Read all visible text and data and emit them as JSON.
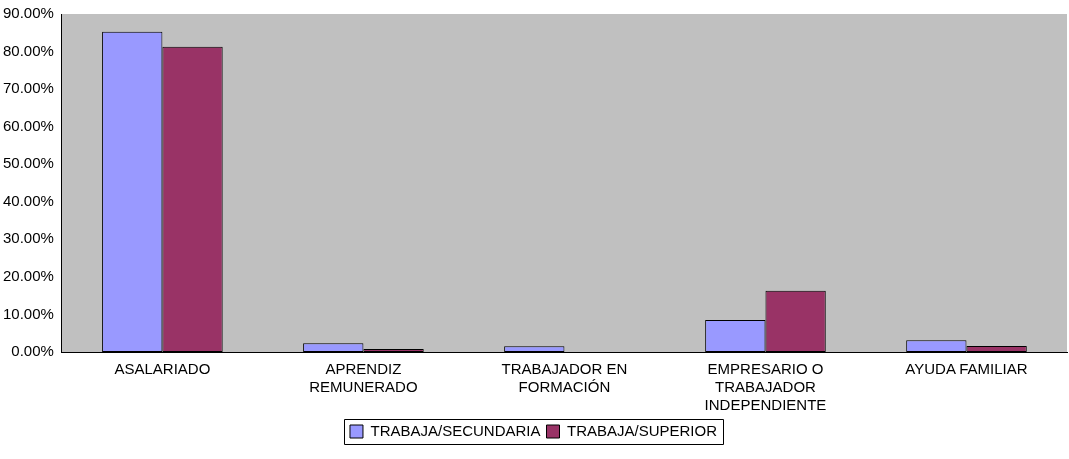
{
  "chart_data": {
    "type": "bar",
    "categories": [
      "ASALARIADO",
      "APRENDIZ REMUNERADO",
      "TRABAJADOR EN FORMACIÓN",
      "EMPRESARIO O TRABAJADOR INDEPENDIENTE",
      "AYUDA FAMILIAR"
    ],
    "series": [
      {
        "name": "TRABAJA/SECUNDARIA",
        "color": "#9999ff",
        "values": [
          85.3,
          2.3,
          1.5,
          8.5,
          3.1
        ]
      },
      {
        "name": "TRABAJA/SUPERIOR",
        "color": "#993366",
        "values": [
          81.3,
          0.8,
          0,
          16.3,
          1.6
        ]
      }
    ],
    "ylim": [
      0,
      90
    ],
    "yticks": [
      {
        "value": 0,
        "label": "0.00%"
      },
      {
        "value": 10,
        "label": "10.00%"
      },
      {
        "value": 20,
        "label": "20.00%"
      },
      {
        "value": 30,
        "label": "30.00%"
      },
      {
        "value": 40,
        "label": "40.00%"
      },
      {
        "value": 50,
        "label": "50.00%"
      },
      {
        "value": 60,
        "label": "60.00%"
      },
      {
        "value": 70,
        "label": "70.00%"
      },
      {
        "value": 80,
        "label": "80.00%"
      },
      {
        "value": 90,
        "label": "90.00%"
      }
    ],
    "grid": false,
    "legend": "bottom"
  }
}
